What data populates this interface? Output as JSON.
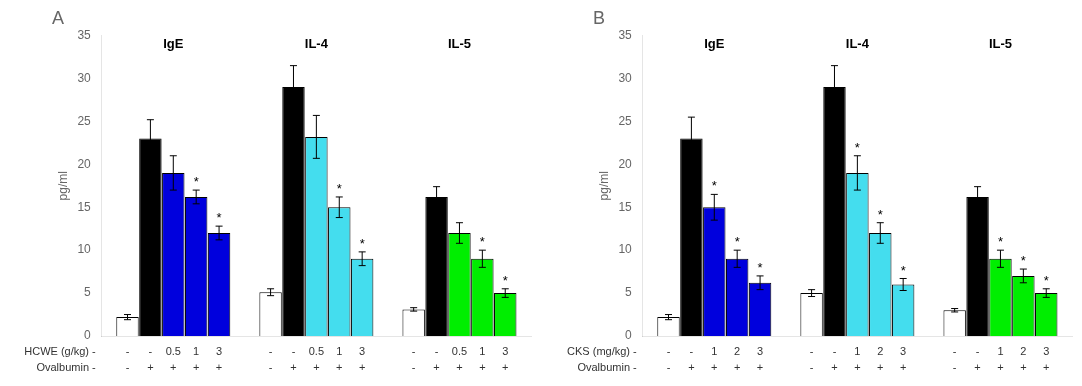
{
  "chart_data": [
    {
      "type": "bar",
      "title": "A",
      "ylabel": "pg/ml",
      "ylim": [
        0,
        35
      ],
      "yticks": [
        0,
        5,
        10,
        15,
        20,
        25,
        30,
        35
      ],
      "grid": false,
      "categories": [
        "IgE",
        "IL-4",
        "IL-5"
      ],
      "x_row_labels": [
        "HCWE (g/kg) -",
        "Ovalbumin -"
      ],
      "series": [
        {
          "x_labels": [
            "-",
            "-"
          ],
          "colors": [
            "white",
            "white",
            "white"
          ],
          "values": [
            2.2,
            5.1,
            3.1
          ],
          "errors": [
            0.3,
            0.4,
            0.2
          ],
          "annotations": [
            null,
            null,
            null
          ]
        },
        {
          "x_labels": [
            "-",
            "+"
          ],
          "colors": [
            "black",
            "black",
            "black"
          ],
          "values": [
            23.0,
            29.0,
            16.2
          ],
          "errors": [
            2.2,
            2.5,
            1.2
          ],
          "annotations": [
            null,
            null,
            null
          ]
        },
        {
          "x_labels": [
            "0.5",
            "+"
          ],
          "colors": [
            "#0000dd",
            "#44ddee",
            "#00ee00"
          ],
          "values": [
            19.0,
            23.2,
            12.0
          ],
          "errors": [
            2.0,
            2.5,
            1.2
          ],
          "annotations": [
            null,
            null,
            null
          ]
        },
        {
          "x_labels": [
            "1",
            "+"
          ],
          "colors": [
            "#0000dd",
            "#44ddee",
            "#00ee00"
          ],
          "values": [
            16.2,
            15.0,
            9.0
          ],
          "errors": [
            0.8,
            1.2,
            1.0
          ],
          "annotations": [
            "*",
            "*",
            "*"
          ]
        },
        {
          "x_labels": [
            "3",
            "+"
          ],
          "colors": [
            "#0000dd",
            "#44ddee",
            "#00ee00"
          ],
          "values": [
            12.0,
            9.0,
            5.0
          ],
          "errors": [
            0.8,
            0.8,
            0.5
          ],
          "annotations": [
            "*",
            "*",
            "*"
          ]
        }
      ]
    },
    {
      "type": "bar",
      "title": "B",
      "ylabel": "pg/ml",
      "ylim": [
        0,
        35
      ],
      "yticks": [
        0,
        5,
        10,
        15,
        20,
        25,
        30,
        35
      ],
      "grid": false,
      "categories": [
        "IgE",
        "IL-4",
        "IL-5"
      ],
      "x_row_labels": [
        "CKS (mg/kg) -",
        "Ovalbumin -"
      ],
      "series": [
        {
          "x_labels": [
            "-",
            "-"
          ],
          "colors": [
            "white",
            "white",
            "white"
          ],
          "values": [
            2.2,
            5.0,
            3.0
          ],
          "errors": [
            0.3,
            0.4,
            0.2
          ],
          "annotations": [
            null,
            null,
            null
          ]
        },
        {
          "x_labels": [
            "-",
            "+"
          ],
          "colors": [
            "black",
            "black",
            "black"
          ],
          "values": [
            23.0,
            29.0,
            16.2
          ],
          "errors": [
            2.5,
            2.5,
            1.2
          ],
          "annotations": [
            null,
            null,
            null
          ]
        },
        {
          "x_labels": [
            "1",
            "+"
          ],
          "colors": [
            "#0000dd",
            "#44ddee",
            "#00ee00"
          ],
          "values": [
            15.0,
            19.0,
            9.0
          ],
          "errors": [
            1.5,
            2.0,
            1.0
          ],
          "annotations": [
            "*",
            "*",
            "*"
          ]
        },
        {
          "x_labels": [
            "2",
            "+"
          ],
          "colors": [
            "#0000dd",
            "#44ddee",
            "#00ee00"
          ],
          "values": [
            9.0,
            12.0,
            7.0
          ],
          "errors": [
            1.0,
            1.2,
            0.8
          ],
          "annotations": [
            "*",
            "*",
            "*"
          ]
        },
        {
          "x_labels": [
            "3",
            "+"
          ],
          "colors": [
            "#0000dd",
            "#44ddee",
            "#00ee00"
          ],
          "values": [
            6.2,
            6.0,
            5.0
          ],
          "errors": [
            0.8,
            0.7,
            0.5
          ],
          "annotations": [
            "*",
            "*",
            "*"
          ]
        }
      ]
    }
  ]
}
